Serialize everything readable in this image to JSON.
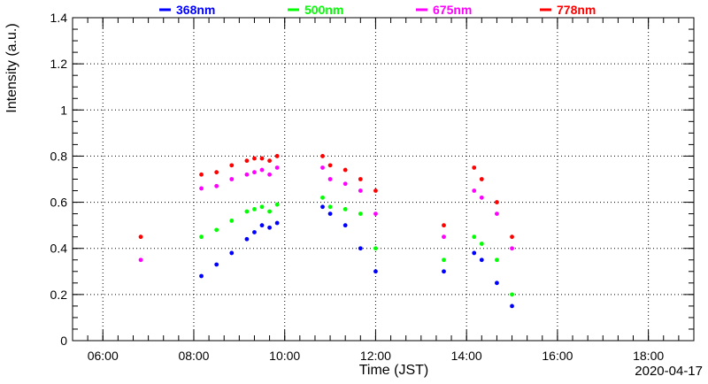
{
  "chart_data": {
    "type": "scatter",
    "title": "",
    "xlabel": "Time (JST)",
    "ylabel": "Intensity (a.u.)",
    "date": "2020-04-17",
    "xlim": [
      "05:20",
      "19:00"
    ],
    "ylim": [
      0,
      1.4
    ],
    "xticks": [
      "06:00",
      "08:00",
      "10:00",
      "12:00",
      "14:00",
      "16:00",
      "18:00"
    ],
    "yticks": [
      "0",
      "0.2",
      "0.4",
      "0.6",
      "0.8",
      "1",
      "1.2",
      "1.4"
    ],
    "grid": true,
    "legend_position": "top",
    "series": [
      {
        "name": "368nm",
        "color": "#0000ff",
        "x": [
          "08:10",
          "08:30",
          "08:50",
          "09:10",
          "09:20",
          "09:30",
          "09:40",
          "09:50",
          "10:50",
          "11:00",
          "11:20",
          "11:40",
          "12:00",
          "13:30",
          "14:10",
          "14:20",
          "14:40",
          "15:00"
        ],
        "values": [
          0.28,
          0.33,
          0.38,
          0.44,
          0.47,
          0.5,
          0.49,
          0.51,
          0.58,
          0.55,
          0.5,
          0.4,
          0.3,
          0.3,
          0.38,
          0.35,
          0.25,
          0.15
        ]
      },
      {
        "name": "500nm",
        "color": "#00ff00",
        "x": [
          "08:10",
          "08:30",
          "08:50",
          "09:10",
          "09:20",
          "09:30",
          "09:40",
          "09:50",
          "10:50",
          "11:00",
          "11:20",
          "11:40",
          "12:00",
          "13:30",
          "14:10",
          "14:20",
          "14:40",
          "15:00"
        ],
        "values": [
          0.45,
          0.48,
          0.52,
          0.56,
          0.57,
          0.58,
          0.56,
          0.59,
          0.62,
          0.58,
          0.57,
          0.55,
          0.4,
          0.35,
          0.45,
          0.42,
          0.35,
          0.2
        ]
      },
      {
        "name": "675nm",
        "color": "#ff00ff",
        "x": [
          "06:50",
          "08:10",
          "08:30",
          "08:50",
          "09:10",
          "09:20",
          "09:30",
          "09:40",
          "09:50",
          "10:50",
          "11:00",
          "11:20",
          "11:40",
          "12:00",
          "13:30",
          "14:10",
          "14:20",
          "14:40",
          "15:00"
        ],
        "values": [
          0.35,
          0.66,
          0.67,
          0.7,
          0.72,
          0.73,
          0.74,
          0.72,
          0.75,
          0.75,
          0.7,
          0.68,
          0.65,
          0.55,
          0.45,
          0.65,
          0.62,
          0.55,
          0.4
        ]
      },
      {
        "name": "778nm",
        "color": "#ff0000",
        "x": [
          "06:50",
          "08:10",
          "08:30",
          "08:50",
          "09:10",
          "09:20",
          "09:30",
          "09:40",
          "09:50",
          "10:50",
          "11:00",
          "11:20",
          "11:40",
          "12:00",
          "13:30",
          "14:10",
          "14:20",
          "14:40",
          "15:00"
        ],
        "values": [
          0.45,
          0.72,
          0.73,
          0.76,
          0.78,
          0.79,
          0.79,
          0.78,
          0.8,
          0.8,
          0.76,
          0.74,
          0.7,
          0.65,
          0.5,
          0.75,
          0.7,
          0.6,
          0.45
        ]
      }
    ]
  }
}
